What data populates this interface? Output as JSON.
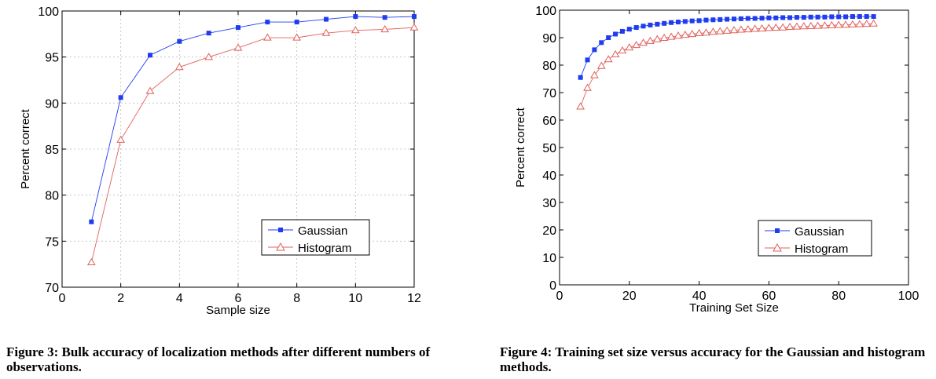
{
  "colors": {
    "gaussian": "#1f3cf0",
    "histogram": "#e0605a",
    "grid": "#bdbdbd",
    "axis": "#000000"
  },
  "captions": {
    "fig3": "Figure 3: Bulk accuracy of localization methods after different numbers of observations.",
    "fig4": "Figure 4:  Training set size versus accuracy for the Gaussian and histogram methods."
  },
  "chart_data": [
    {
      "type": "line",
      "xlabel": "Sample size",
      "ylabel": "Percent correct",
      "xlim": [
        0,
        12
      ],
      "ylim": [
        70,
        100
      ],
      "xticks": [
        0,
        2,
        4,
        6,
        8,
        10,
        12
      ],
      "yticks": [
        70,
        75,
        80,
        85,
        90,
        95,
        100
      ],
      "grid": true,
      "legend_position": "lower-right",
      "series": [
        {
          "name": "Gaussian",
          "marker": "square",
          "x": [
            1,
            2,
            3,
            4,
            5,
            6,
            7,
            8,
            9,
            10,
            11,
            12
          ],
          "y": [
            77.1,
            90.6,
            95.2,
            96.7,
            97.6,
            98.2,
            98.8,
            98.8,
            99.1,
            99.4,
            99.3,
            99.4
          ]
        },
        {
          "name": "Histogram",
          "marker": "triangle",
          "x": [
            1,
            2,
            3,
            4,
            5,
            6,
            7,
            8,
            9,
            10,
            11,
            12
          ],
          "y": [
            72.7,
            86.0,
            91.3,
            93.9,
            95.0,
            96.0,
            97.1,
            97.1,
            97.6,
            97.9,
            98.0,
            98.2
          ]
        }
      ]
    },
    {
      "type": "line",
      "xlabel": "Training Set Size",
      "ylabel": "Percent correct",
      "xlim": [
        0,
        100
      ],
      "ylim": [
        0,
        100
      ],
      "xticks": [
        0,
        20,
        40,
        60,
        80,
        100
      ],
      "yticks": [
        0,
        10,
        20,
        30,
        40,
        50,
        60,
        70,
        80,
        90,
        100
      ],
      "grid": false,
      "legend_position": "lower-right",
      "series": [
        {
          "name": "Gaussian",
          "marker": "square",
          "x": [
            6,
            8,
            10,
            12,
            14,
            16,
            18,
            20,
            22,
            24,
            26,
            28,
            30,
            32,
            34,
            36,
            38,
            40,
            42,
            44,
            46,
            48,
            50,
            52,
            54,
            56,
            58,
            60,
            62,
            64,
            66,
            68,
            70,
            72,
            74,
            76,
            78,
            80,
            82,
            84,
            86,
            88,
            90
          ],
          "y": [
            75.5,
            81.9,
            85.6,
            88.2,
            90.0,
            91.3,
            92.3,
            93.1,
            93.7,
            94.2,
            94.6,
            94.9,
            95.2,
            95.5,
            95.7,
            95.9,
            96.1,
            96.2,
            96.4,
            96.5,
            96.6,
            96.7,
            96.8,
            96.9,
            97.0,
            97.0,
            97.1,
            97.2,
            97.2,
            97.3,
            97.3,
            97.4,
            97.4,
            97.5,
            97.5,
            97.5,
            97.6,
            97.6,
            97.6,
            97.7,
            97.7,
            97.7,
            97.7
          ]
        },
        {
          "name": "Histogram",
          "marker": "triangle",
          "x": [
            6,
            8,
            10,
            12,
            14,
            16,
            18,
            20,
            22,
            24,
            26,
            28,
            30,
            32,
            34,
            36,
            38,
            40,
            42,
            44,
            46,
            48,
            50,
            52,
            54,
            56,
            58,
            60,
            62,
            64,
            66,
            68,
            70,
            72,
            74,
            76,
            78,
            80,
            82,
            84,
            86,
            88,
            90
          ],
          "y": [
            64.9,
            71.7,
            76.3,
            79.7,
            82.1,
            83.9,
            85.3,
            86.4,
            87.3,
            88.1,
            88.8,
            89.4,
            89.9,
            90.3,
            90.7,
            91.0,
            91.3,
            91.6,
            91.8,
            92.1,
            92.3,
            92.5,
            92.7,
            92.9,
            93.0,
            93.2,
            93.3,
            93.5,
            93.6,
            93.7,
            93.9,
            94.0,
            94.1,
            94.2,
            94.3,
            94.4,
            94.5,
            94.6,
            94.7,
            94.8,
            94.9,
            95.0,
            95.1
          ]
        }
      ]
    }
  ]
}
